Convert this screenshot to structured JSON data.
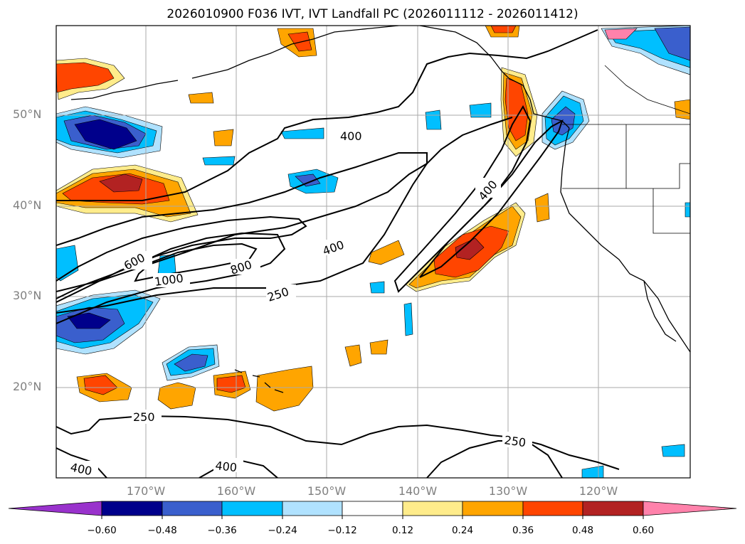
{
  "title": "2026010900 F036 IVT, IVT Landfall PC (2026011112 - 2026011412)",
  "axes": {
    "lat_labels": [
      "50°N",
      "40°N",
      "30°N",
      "20°N"
    ],
    "lon_labels": [
      "170°W",
      "160°W",
      "150°W",
      "140°W",
      "130°W",
      "120°W"
    ]
  },
  "contours": {
    "line_color": "#000000",
    "labels": [
      {
        "text": "400"
      },
      {
        "text": "400"
      },
      {
        "text": "400"
      },
      {
        "text": "600"
      },
      {
        "text": "1000"
      },
      {
        "text": "800"
      },
      {
        "text": "250"
      },
      {
        "text": "250"
      },
      {
        "text": "250"
      },
      {
        "text": "400"
      },
      {
        "text": "400"
      }
    ]
  },
  "colorbar": {
    "tick_labels": [
      "−0.60",
      "−0.48",
      "−0.36",
      "−0.24",
      "−0.12",
      "0.12",
      "0.24",
      "0.36",
      "0.48",
      "0.60"
    ],
    "colors": [
      "#9932CC",
      "#00008B",
      "#3A5FCD",
      "#00BFFF",
      "#B0E2FF",
      "#FFFFFF",
      "#FFEC8B",
      "#FFA500",
      "#FF4500",
      "#B22222",
      "#FF82AB"
    ]
  }
}
